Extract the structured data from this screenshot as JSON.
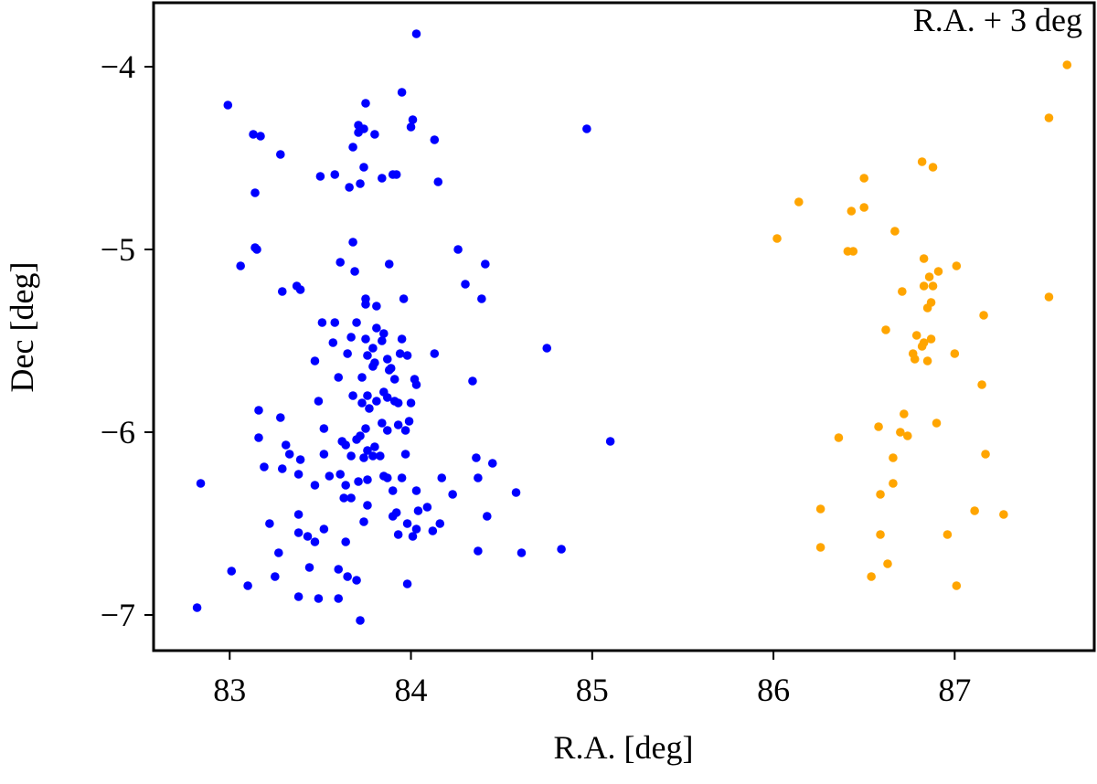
{
  "chart_data": {
    "type": "scatter",
    "xlabel": "R.A. [deg]",
    "ylabel": "Dec [deg]",
    "annotation": "R.A. + 3 deg",
    "annotation_color": "#ffa500",
    "xlim": [
      82.58,
      87.77
    ],
    "ylim": [
      -7.195,
      -3.65
    ],
    "xticks": [
      83,
      84,
      85,
      86,
      87
    ],
    "yticks": [
      {
        "value": -4,
        "label": "−4"
      },
      {
        "value": -5,
        "label": "−5"
      },
      {
        "value": -6,
        "label": "−6"
      },
      {
        "value": -7,
        "label": "−7"
      }
    ],
    "series": [
      {
        "color": "#0000ff",
        "x": [
          84.03,
          82.99,
          83.95,
          83.75,
          83.13,
          83.17,
          83.71,
          83.74,
          83.8,
          83.71,
          84.01,
          84.0,
          84.13,
          84.97,
          83.28,
          83.68,
          83.74,
          83.9,
          83.92,
          83.5,
          83.58,
          83.66,
          83.72,
          83.84,
          84.15,
          83.14,
          83.14,
          83.15,
          83.68,
          83.06,
          83.61,
          83.69,
          83.88,
          84.26,
          84.41,
          84.3,
          83.37,
          83.39,
          83.29,
          83.75,
          83.75,
          83.81,
          83.96,
          84.39,
          83.51,
          83.58,
          83.7,
          83.81,
          83.85,
          83.84,
          83.57,
          83.67,
          83.75,
          83.65,
          83.79,
          83.95,
          83.94,
          83.98,
          84.13,
          84.75,
          83.47,
          83.76,
          83.8,
          83.87,
          83.79,
          83.89,
          83.88,
          83.91,
          84.02,
          84.03,
          83.73,
          83.6,
          84.34,
          83.49,
          83.68,
          83.76,
          83.73,
          83.77,
          83.81,
          83.85,
          83.87,
          83.91,
          83.93,
          84.0,
          83.16,
          83.99,
          83.52,
          83.62,
          83.72,
          83.75,
          83.84,
          83.93,
          83.97,
          83.28,
          83.16,
          83.64,
          83.7,
          83.76,
          83.8,
          83.67,
          83.83,
          83.87,
          85.1,
          83.31,
          83.33,
          83.39,
          83.52,
          83.74,
          83.79,
          83.97,
          82.84,
          83.19,
          83.29,
          83.38,
          83.61,
          83.55,
          83.64,
          83.71,
          83.76,
          83.85,
          83.87,
          83.9,
          83.95,
          84.03,
          84.17,
          84.37,
          84.45,
          84.58,
          84.36,
          84.04,
          84.09,
          84.23,
          83.76,
          83.67,
          83.63,
          83.47,
          83.22,
          83.38,
          83.38,
          83.43,
          83.52,
          83.47,
          83.64,
          83.74,
          83.92,
          83.9,
          83.98,
          84.03,
          83.93,
          84.01,
          84.12,
          84.16,
          84.37,
          84.42,
          84.83,
          84.61,
          83.27,
          83.01,
          83.1,
          83.25,
          83.44,
          83.6,
          83.65,
          83.7,
          83.98,
          83.38,
          83.49,
          83.6,
          82.82,
          83.72
        ],
        "y": [
          -3.82,
          -4.21,
          -4.14,
          -4.2,
          -4.37,
          -4.38,
          -4.32,
          -4.34,
          -4.37,
          -4.36,
          -4.29,
          -4.33,
          -4.4,
          -4.34,
          -4.48,
          -4.44,
          -4.55,
          -4.59,
          -4.59,
          -4.6,
          -4.59,
          -4.66,
          -4.64,
          -4.61,
          -4.63,
          -4.69,
          -4.99,
          -5.0,
          -4.96,
          -5.09,
          -5.07,
          -5.12,
          -5.08,
          -5.0,
          -5.08,
          -5.19,
          -5.2,
          -5.22,
          -5.23,
          -5.27,
          -5.3,
          -5.31,
          -5.27,
          -5.27,
          -5.4,
          -5.4,
          -5.4,
          -5.43,
          -5.46,
          -5.5,
          -5.51,
          -5.48,
          -5.49,
          -5.57,
          -5.54,
          -5.49,
          -5.57,
          -5.58,
          -5.57,
          -5.54,
          -5.61,
          -5.58,
          -5.62,
          -5.6,
          -5.64,
          -5.65,
          -5.66,
          -5.71,
          -5.71,
          -5.74,
          -5.7,
          -5.7,
          -5.72,
          -5.83,
          -5.8,
          -5.8,
          -5.84,
          -5.87,
          -5.83,
          -5.78,
          -5.81,
          -5.83,
          -5.84,
          -5.84,
          -5.88,
          -5.94,
          -5.98,
          -6.05,
          -6.02,
          -5.98,
          -5.95,
          -5.96,
          -5.99,
          -5.92,
          -6.03,
          -6.07,
          -6.04,
          -6.1,
          -6.08,
          -6.13,
          -6.13,
          -5.99,
          -6.05,
          -6.07,
          -6.12,
          -6.15,
          -6.12,
          -6.14,
          -6.13,
          -6.12,
          -6.28,
          -6.19,
          -6.2,
          -6.23,
          -6.23,
          -6.24,
          -6.29,
          -6.27,
          -6.26,
          -6.24,
          -6.25,
          -6.32,
          -6.25,
          -6.32,
          -6.25,
          -6.25,
          -6.17,
          -6.33,
          -6.14,
          -6.43,
          -6.41,
          -6.34,
          -6.4,
          -6.36,
          -6.36,
          -6.29,
          -6.5,
          -6.45,
          -6.55,
          -6.57,
          -6.53,
          -6.6,
          -6.6,
          -6.49,
          -6.44,
          -6.46,
          -6.5,
          -6.53,
          -6.56,
          -6.57,
          -6.54,
          -6.5,
          -6.65,
          -6.46,
          -6.64,
          -6.66,
          -6.66,
          -6.76,
          -6.84,
          -6.79,
          -6.74,
          -6.75,
          -6.79,
          -6.81,
          -6.83,
          -6.9,
          -6.91,
          -6.91,
          -6.96,
          -7.03
        ]
      },
      {
        "color": "#ffa500",
        "x": [
          87.62,
          87.52,
          86.82,
          86.88,
          86.5,
          86.14,
          86.43,
          86.5,
          86.67,
          86.02,
          86.41,
          86.44,
          86.83,
          87.01,
          86.91,
          86.86,
          86.83,
          86.88,
          86.71,
          87.52,
          86.87,
          86.85,
          87.16,
          86.62,
          86.79,
          86.87,
          86.83,
          86.82,
          87.0,
          86.77,
          86.78,
          86.85,
          87.15,
          86.72,
          86.9,
          86.58,
          86.7,
          86.74,
          87.17,
          86.36,
          86.66,
          86.59,
          86.26,
          87.11,
          87.27,
          86.59,
          86.96,
          86.26,
          86.63,
          86.54,
          87.01,
          86.66
        ],
        "y": [
          -3.99,
          -4.28,
          -4.52,
          -4.55,
          -4.61,
          -4.74,
          -4.79,
          -4.77,
          -4.9,
          -4.94,
          -5.01,
          -5.01,
          -5.05,
          -5.09,
          -5.12,
          -5.15,
          -5.2,
          -5.2,
          -5.23,
          -5.26,
          -5.29,
          -5.32,
          -5.36,
          -5.44,
          -5.47,
          -5.49,
          -5.51,
          -5.53,
          -5.57,
          -5.57,
          -5.6,
          -5.61,
          -5.74,
          -5.9,
          -5.95,
          -5.97,
          -6.0,
          -6.02,
          -6.12,
          -6.03,
          -6.28,
          -6.34,
          -6.42,
          -6.43,
          -6.45,
          -6.56,
          -6.56,
          -6.63,
          -6.72,
          -6.79,
          -6.84,
          -6.14
        ]
      }
    ]
  }
}
